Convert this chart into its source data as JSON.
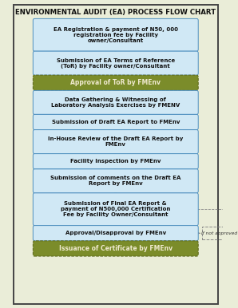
{
  "title": "ENVIRONMENTAL AUDIT (EA) PROCESS FLOW CHART",
  "bg_color": "#eaedd8",
  "border_color": "#444444",
  "boxes": [
    {
      "text": "EA Registration & payment of N50, 000\nregistration fee by Facility\nowner/Consultant",
      "style": "light",
      "lines": 3
    },
    {
      "text": "Submission of EA Terms of Reference\n(ToR) by Facility owner/Consultant",
      "style": "light",
      "lines": 2
    },
    {
      "text": "Approval of ToR by FMEnv",
      "style": "dark",
      "lines": 1
    },
    {
      "text": "Data Gathering & Witnessing of\nLaboratory Analysis Exercises by FMENV",
      "style": "light",
      "lines": 2
    },
    {
      "text": "Submission of Draft EA Report to FMEnv",
      "style": "light",
      "lines": 1
    },
    {
      "text": "In-House Review of the Draft EA Report by\nFMEnv",
      "style": "light",
      "lines": 2
    },
    {
      "text": "Facility Inspection by FMEnv",
      "style": "light",
      "lines": 1
    },
    {
      "text": "Submission of comments on the Draft EA\nReport by FMEnv",
      "style": "light",
      "lines": 2
    },
    {
      "text": "Submission of Final EA Report &\npayment of N500,000 Certification\nFee by Facility Owner/Consultant",
      "style": "light",
      "lines": 3
    },
    {
      "text": "Approval/Disapproval by FMEnv",
      "style": "light",
      "lines": 1
    },
    {
      "text": "Issuance of Certificate by FMEnv",
      "style": "dark",
      "lines": 1
    }
  ],
  "light_box_color": "#d0e8f5",
  "light_box_edge": "#5090c0",
  "dark_box_color": "#7b8c2a",
  "dark_box_edge": "#5a6618",
  "dark_text_color": "#f0ead0",
  "light_text_color": "#111111",
  "arrow_color": "#444444",
  "if_not_approved_text": "if not approved",
  "dash_edge_color": "#888888",
  "title_fontsize": 6.2,
  "light_fontsize": 5.0,
  "dark_fontsize": 5.5
}
